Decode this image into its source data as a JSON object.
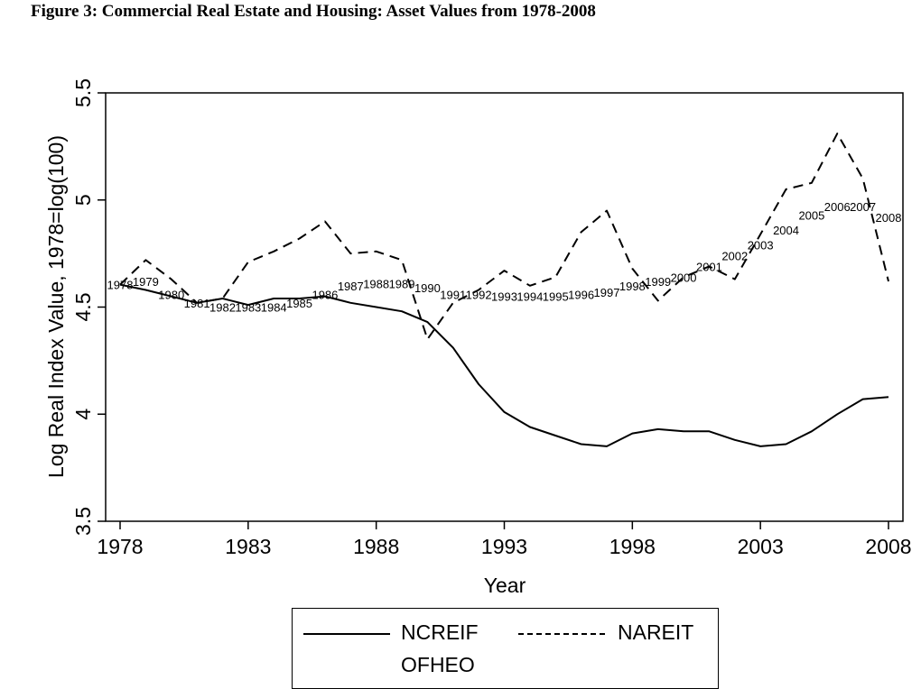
{
  "figure_title": "Figure 3:  Commercial Real Estate and Housing:  Asset Values from 1978-2008",
  "chart_data": {
    "type": "line",
    "xlabel": "Year",
    "ylabel": "Log Real Index Value,  1978=log(100)",
    "xlim": [
      1978,
      2008
    ],
    "ylim": [
      3.5,
      5.5
    ],
    "xticks": [
      1978,
      1983,
      1988,
      1993,
      1998,
      2003,
      2008
    ],
    "yticks": [
      3.5,
      4,
      4.5,
      5,
      5.5
    ],
    "ytick_labels": [
      "3.5",
      "4",
      "4.5",
      "5",
      "5.5"
    ],
    "grid": false,
    "legend_position": "bottom",
    "x": [
      1978,
      1979,
      1980,
      1981,
      1982,
      1983,
      1984,
      1985,
      1986,
      1987,
      1988,
      1989,
      1990,
      1991,
      1992,
      1993,
      1994,
      1995,
      1996,
      1997,
      1998,
      1999,
      2000,
      2001,
      2002,
      2003,
      2004,
      2005,
      2006,
      2007,
      2008
    ],
    "series": [
      {
        "name": "NCREIF",
        "style": "solid",
        "values": [
          4.605,
          4.58,
          4.55,
          4.52,
          4.54,
          4.51,
          4.54,
          4.54,
          4.55,
          4.52,
          4.5,
          4.48,
          4.43,
          4.31,
          4.14,
          4.01,
          3.94,
          3.9,
          3.86,
          3.85,
          3.91,
          3.93,
          3.92,
          3.92,
          3.88,
          3.85,
          3.86,
          3.92,
          4.0,
          4.07,
          4.08
        ]
      },
      {
        "name": "NAREIT",
        "style": "dashed",
        "values": [
          4.605,
          4.72,
          4.63,
          4.52,
          4.54,
          4.71,
          4.76,
          4.82,
          4.9,
          4.75,
          4.76,
          4.72,
          4.35,
          4.52,
          4.58,
          4.67,
          4.6,
          4.64,
          4.85,
          4.95,
          4.68,
          4.53,
          4.64,
          4.69,
          4.63,
          4.84,
          5.05,
          5.08,
          5.31,
          5.1,
          4.62
        ]
      },
      {
        "name": "OFHEO",
        "style": "points-labeled",
        "values": [
          4.605,
          4.62,
          4.56,
          4.52,
          4.5,
          4.5,
          4.5,
          4.52,
          4.56,
          4.6,
          4.61,
          4.61,
          4.59,
          4.56,
          4.56,
          4.55,
          4.55,
          4.55,
          4.56,
          4.57,
          4.6,
          4.62,
          4.64,
          4.69,
          4.74,
          4.79,
          4.86,
          4.93,
          4.97,
          4.97,
          4.92
        ]
      }
    ]
  }
}
